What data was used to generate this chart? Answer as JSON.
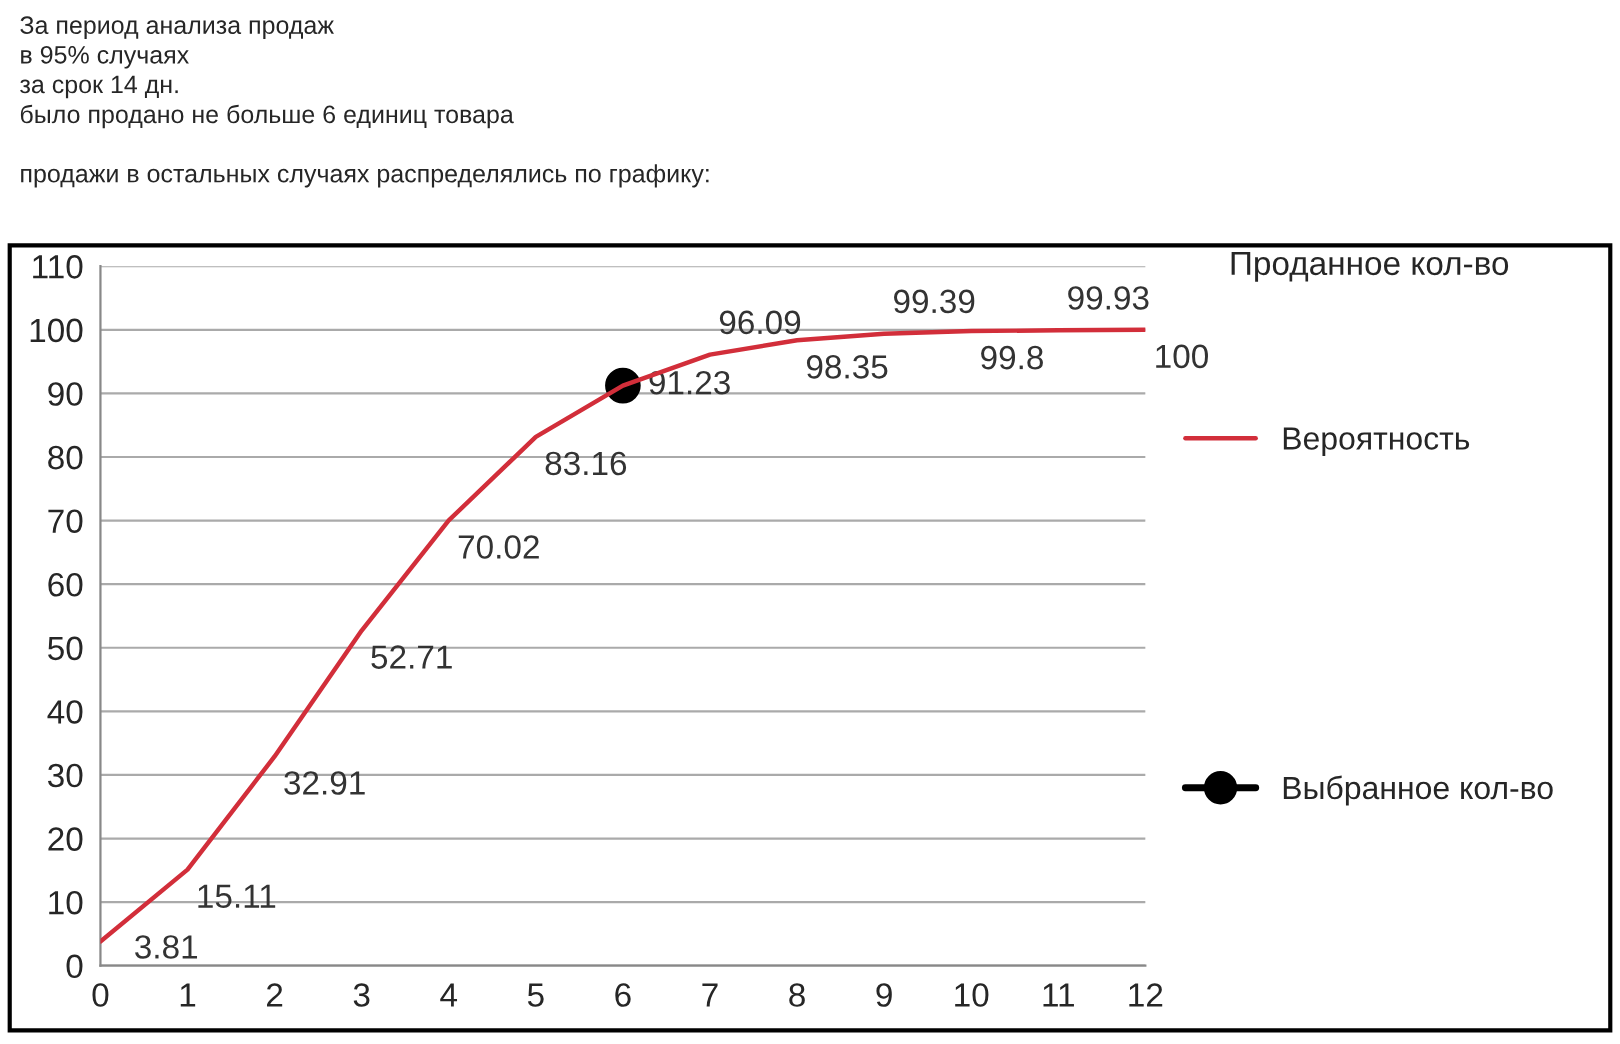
{
  "chart_data": {
    "type": "line",
    "title": "За период анализа продаж\nв 95% случаях\nза срок 14 дн.\nбыло продано не больше 6 единиц товара\n\nпродажи в остальных случаях распределялись по графику:",
    "xlabel": "Проданное кол-во",
    "x": [
      0,
      1,
      2,
      3,
      4,
      5,
      6,
      7,
      8,
      9,
      10,
      11,
      12
    ],
    "series": [
      {
        "name": "Вероятность",
        "color": "#d22e3a",
        "values": [
          3.81,
          15.11,
          32.91,
          52.71,
          70.02,
          83.16,
          91.23,
          96.09,
          98.35,
          99.39,
          99.8,
          99.93,
          100
        ],
        "value_labels": [
          "3.81",
          "15.11",
          "32.91",
          "52.71",
          "70.02",
          "83.16",
          null,
          "96.09",
          "98.35",
          "99.39",
          "99.8",
          "99.93",
          "100"
        ]
      },
      {
        "name": "Выбранное кол-во",
        "type": "scatter",
        "color": "#000000",
        "x": [
          6
        ],
        "values": [
          91.23
        ],
        "value_labels": [
          "91.23"
        ]
      }
    ],
    "xlim": [
      0,
      12
    ],
    "xticks": [
      0,
      1,
      2,
      3,
      4,
      5,
      6,
      7,
      8,
      9,
      10,
      11,
      12
    ],
    "ylim": [
      0,
      110
    ],
    "yticks": [
      0,
      10,
      20,
      30,
      40,
      50,
      60,
      70,
      80,
      90,
      100,
      110
    ],
    "grid": "y",
    "legend": "right"
  }
}
